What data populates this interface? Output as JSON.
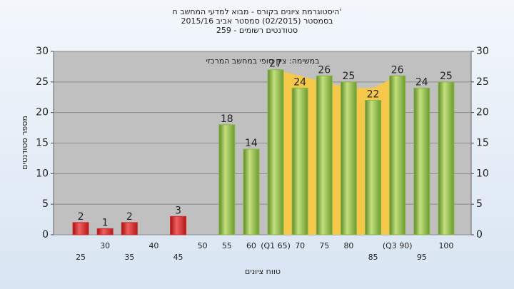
{
  "chart_data": {
    "type": "bar",
    "title": [
      "היסטוגרמת ציונים בקורס - מבוא למדעי המחשב ח'",
      "בסמסטר (02/2015) סמסטר אביב 2015/16",
      "סטודנטים רשומים - 259"
    ],
    "annotation": "במשימה: ציון סופי במחשב המרכזי",
    "x_label": "טווח ציונים",
    "y_label": "מספר סטודנטים",
    "categories": [
      "25",
      "30",
      "35",
      "40",
      "45",
      "50",
      "55",
      "60",
      "(Q1 65)",
      "70",
      "75",
      "80",
      "85",
      "(Q3 90)",
      "95",
      "100"
    ],
    "values": [
      2,
      1,
      2,
      null,
      3,
      null,
      18,
      14,
      27,
      24,
      26,
      25,
      22,
      26,
      24,
      25
    ],
    "colors": [
      "#d42a2a",
      "#d42a2a",
      "#d42a2a",
      "#d42a2a",
      "#d42a2a",
      "#d42a2a",
      "#8db648",
      "#8db648",
      "#8db648",
      "#8db648",
      "#8db648",
      "#8db648",
      "#8db648",
      "#8db648",
      "#8db648",
      "#8db648"
    ],
    "band": {
      "color": "#f5c84a",
      "values": [
        null,
        null,
        null,
        null,
        null,
        null,
        null,
        null,
        27,
        26,
        25,
        24,
        24,
        26,
        null,
        null
      ]
    },
    "ylim": [
      0,
      30
    ],
    "yticks": [
      0,
      5,
      10,
      15,
      20,
      25,
      30
    ],
    "y2lim": [
      0,
      30
    ],
    "y2ticks": [
      0,
      5,
      10,
      15,
      20,
      25,
      30
    ],
    "grid": true
  }
}
